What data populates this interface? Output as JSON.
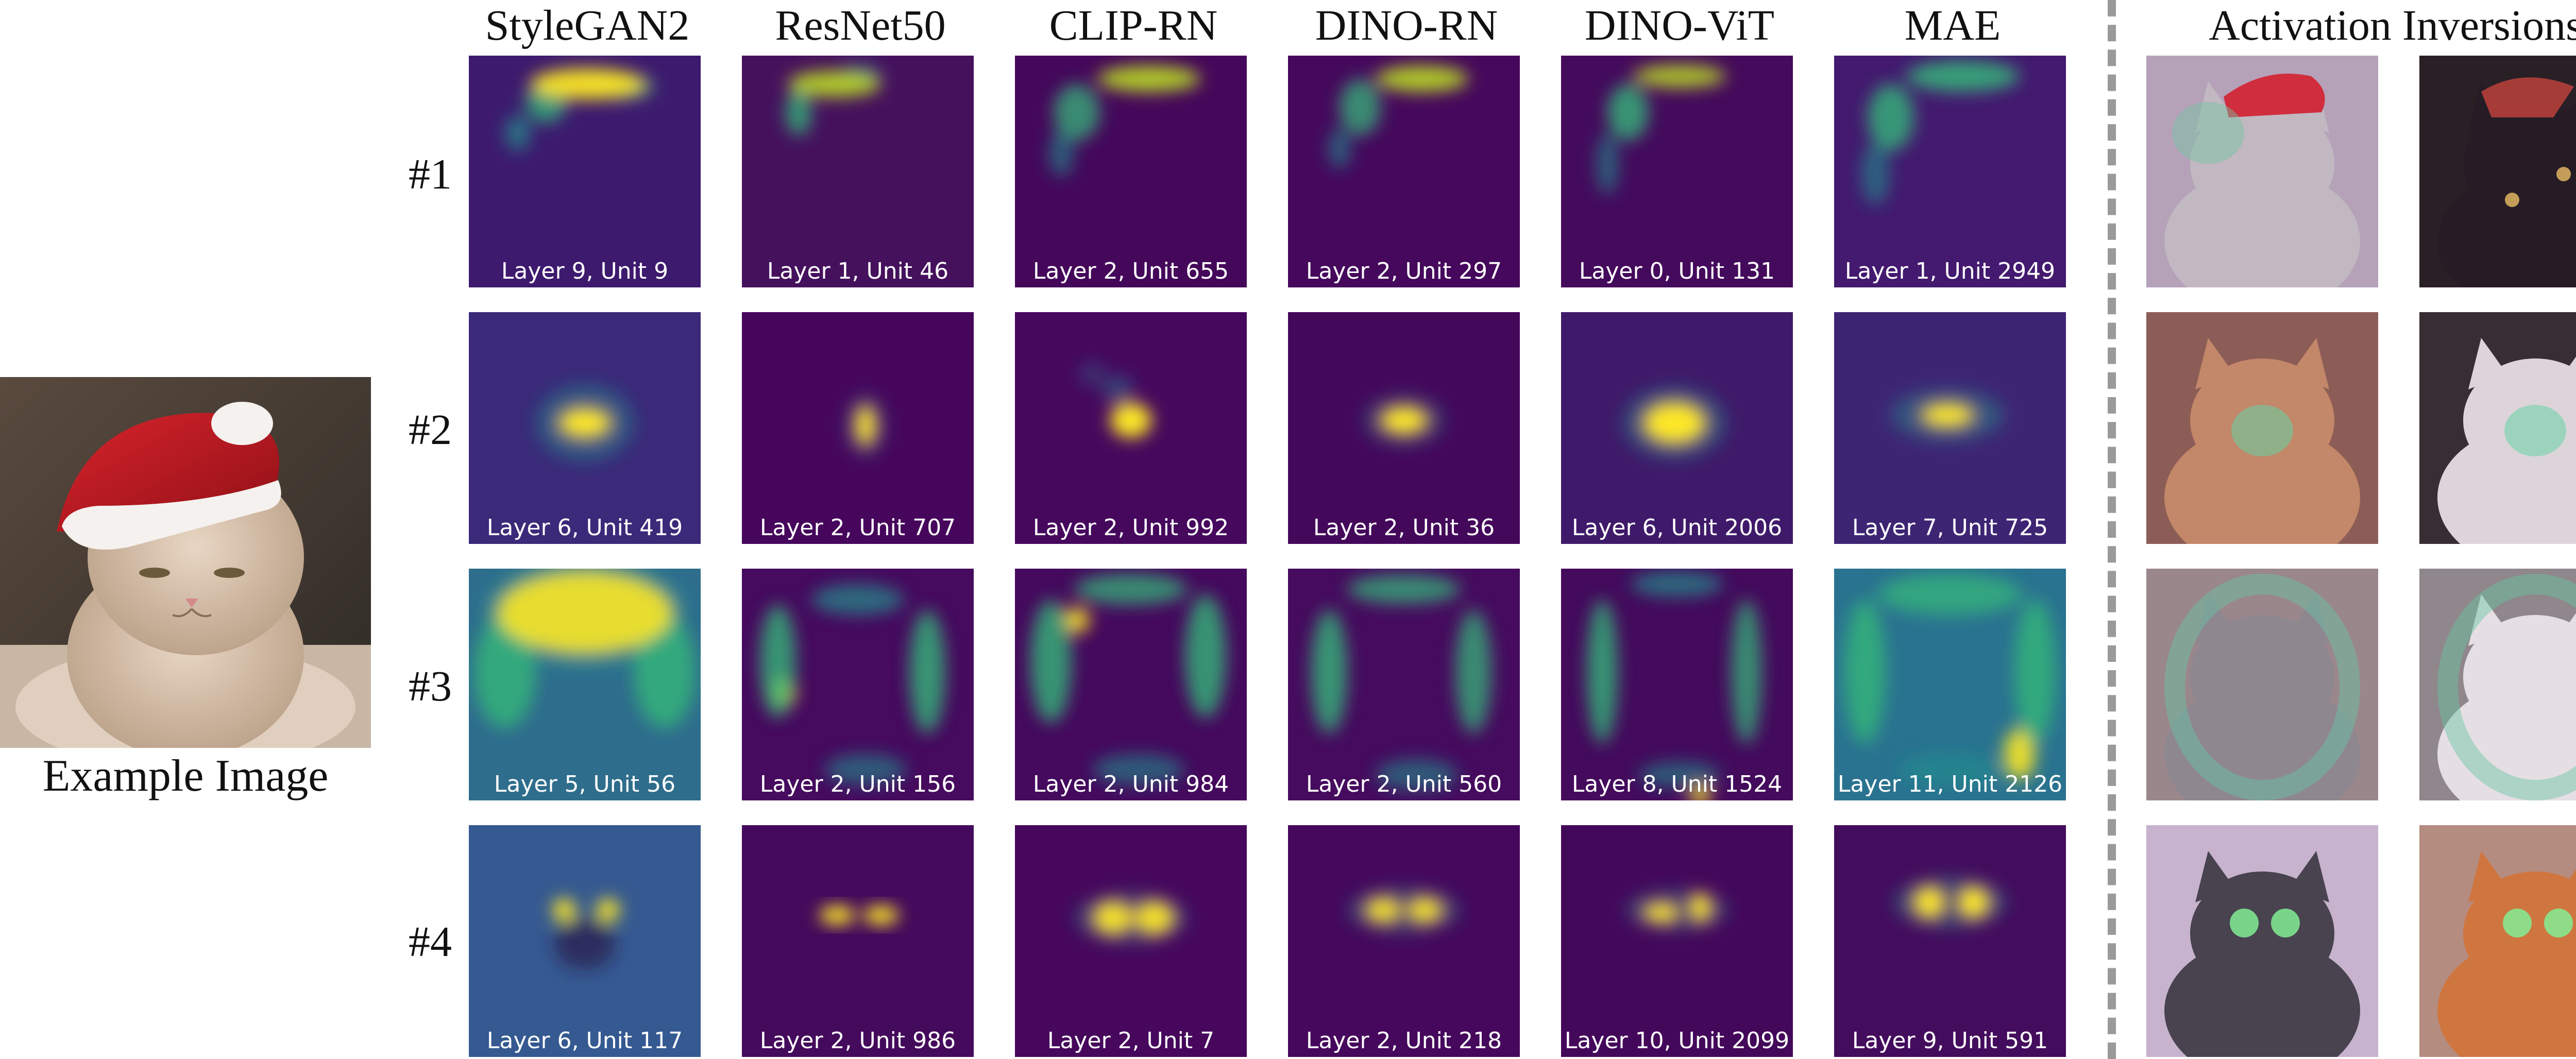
{
  "example": {
    "caption": "Example Image"
  },
  "columns": [
    "StyleGAN2",
    "ResNet50",
    "CLIP-RN",
    "DINO-RN",
    "DINO-ViT",
    "MAE"
  ],
  "inversions_header": "Activation Inversions",
  "rows": [
    {
      "label": "#1",
      "tiles": [
        "Layer 9, Unit 9",
        "Layer 1, Unit 46",
        "Layer 2, Unit 655",
        "Layer 2, Unit 297",
        "Layer 0, Unit 131",
        "Layer 1, Unit 2949"
      ]
    },
    {
      "label": "#2",
      "tiles": [
        "Layer 6, Unit 419",
        "Layer 2, Unit 707",
        "Layer 2, Unit 992",
        "Layer 2, Unit 36",
        "Layer 6, Unit 2006",
        "Layer 7, Unit 725"
      ]
    },
    {
      "label": "#3",
      "tiles": [
        "Layer 5, Unit 56",
        "Layer 2, Unit 156",
        "Layer 2, Unit 984",
        "Layer 2, Unit 560",
        "Layer 8, Unit 1524",
        "Layer 11, Unit 2126"
      ]
    },
    {
      "label": "#4",
      "tiles": [
        "Layer 6, Unit 117",
        "Layer 2, Unit 986",
        "Layer 2, Unit 7",
        "Layer 2, Unit 218",
        "Layer 10, Unit 2099",
        "Layer 9, Unit 591"
      ]
    }
  ],
  "colors": {
    "heatmap_low": "#440154",
    "heatmap_mid": "#21918c",
    "heatmap_high": "#fde725",
    "divider": "#9a9a9a"
  }
}
